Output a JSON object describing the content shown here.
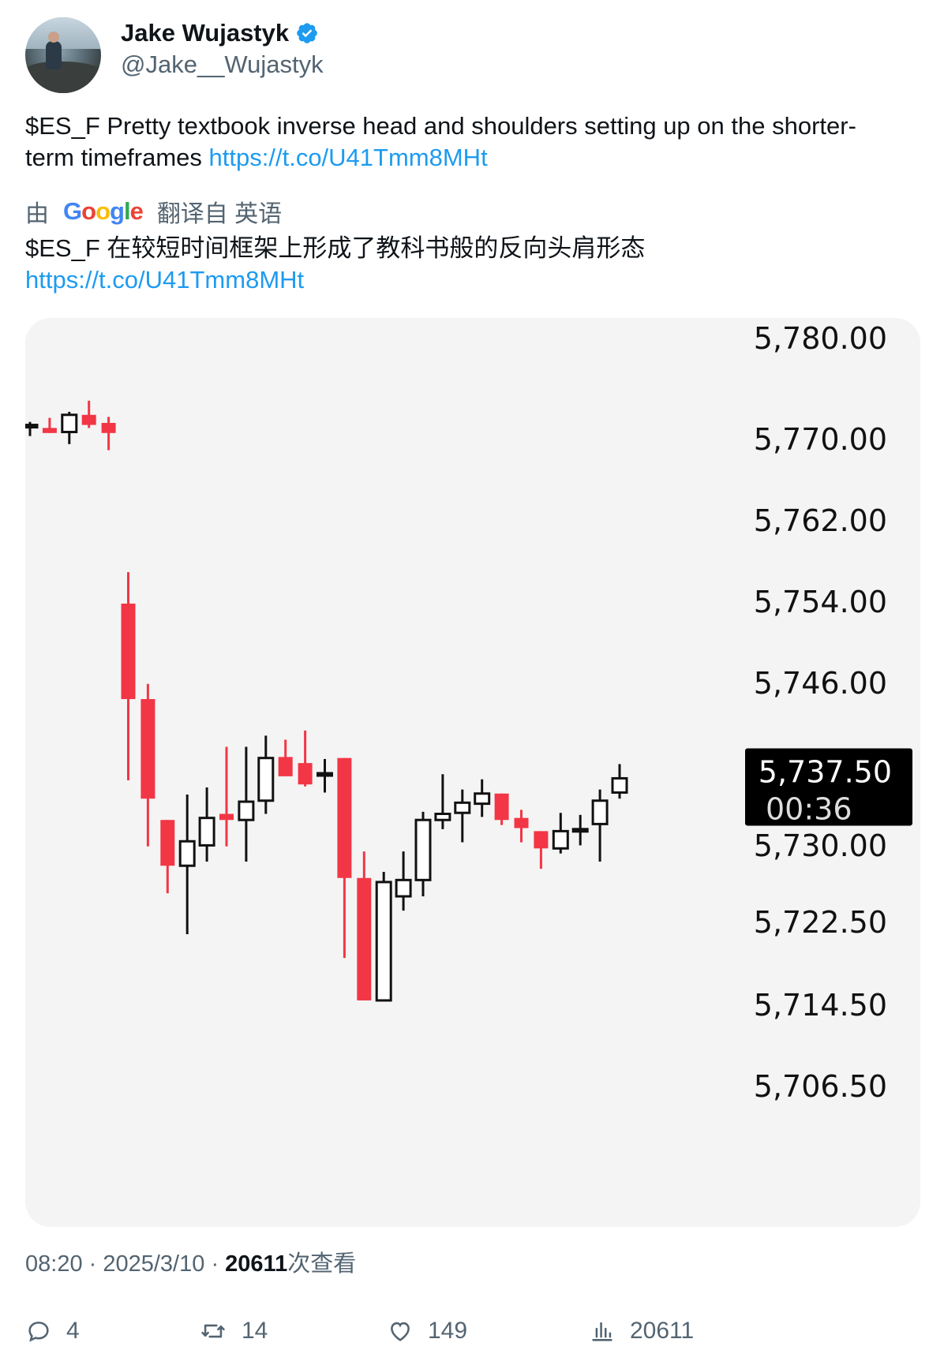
{
  "author": {
    "name": "Jake Wujastyk",
    "handle": "@Jake__Wujastyk",
    "verified": true,
    "verified_color": "#1d9bf0"
  },
  "tweet": {
    "text": "$ES_F Pretty textbook inverse head and shoulders setting up on the shorter-term timeframes",
    "link": "https://t.co/U41Tmm8MHt"
  },
  "translation": {
    "prefix": "由",
    "provider_logo": "Google",
    "suffix": "翻译自 英语",
    "text": "$ES_F 在较短时间框架上形成了教科书般的反向头肩形态",
    "link": "https://t.co/U41Tmm8MHt"
  },
  "chart_data": {
    "type": "candlestick",
    "ytick_labels": [
      "5,780.00",
      "5,770.00",
      "5,762.00",
      "5,754.00",
      "5,746.00",
      "5,730.00",
      "5,722.50",
      "5,714.50",
      "5,706.50"
    ],
    "current_price": {
      "price_label": "5,737.50",
      "timer": "00:36",
      "value": 5737.5
    },
    "up_color": "#ffffff",
    "down_color": "#f23645",
    "candles": [
      {
        "o": 5772.2,
        "h": 5772.6,
        "l": 5771.2,
        "c": 5772.3
      },
      {
        "o": 5772.0,
        "h": 5773.0,
        "l": 5771.5,
        "c": 5771.5
      },
      {
        "o": 5771.6,
        "h": 5773.6,
        "l": 5770.4,
        "c": 5773.3
      },
      {
        "o": 5773.3,
        "h": 5774.7,
        "l": 5772.0,
        "c": 5772.3
      },
      {
        "o": 5772.5,
        "h": 5773.1,
        "l": 5769.8,
        "c": 5771.5
      },
      {
        "o": 5754.7,
        "h": 5757.8,
        "l": 5737.3,
        "c": 5745.3
      },
      {
        "o": 5745.3,
        "h": 5746.8,
        "l": 5730.8,
        "c": 5735.5
      },
      {
        "o": 5733.4,
        "h": 5733.4,
        "l": 5726.2,
        "c": 5728.9
      },
      {
        "o": 5728.9,
        "h": 5735.9,
        "l": 5722.2,
        "c": 5731.3
      },
      {
        "o": 5730.9,
        "h": 5736.6,
        "l": 5729.3,
        "c": 5733.6
      },
      {
        "o": 5734.0,
        "h": 5740.6,
        "l": 5730.8,
        "c": 5733.4
      },
      {
        "o": 5733.4,
        "h": 5740.6,
        "l": 5729.3,
        "c": 5735.2
      },
      {
        "o": 5735.3,
        "h": 5741.7,
        "l": 5734.0,
        "c": 5739.5
      },
      {
        "o": 5739.6,
        "h": 5741.3,
        "l": 5737.8,
        "c": 5737.7
      },
      {
        "o": 5739.0,
        "h": 5742.2,
        "l": 5736.7,
        "c": 5736.9
      },
      {
        "o": 5738.0,
        "h": 5739.4,
        "l": 5736.1,
        "c": 5738.0
      },
      {
        "o": 5739.5,
        "h": 5739.5,
        "l": 5719.9,
        "c": 5727.7
      },
      {
        "o": 5727.7,
        "h": 5730.3,
        "l": 5715.8,
        "c": 5715.8
      },
      {
        "o": 5715.8,
        "h": 5728.3,
        "l": 5715.8,
        "c": 5727.3
      },
      {
        "o": 5725.9,
        "h": 5730.3,
        "l": 5724.5,
        "c": 5727.5
      },
      {
        "o": 5727.5,
        "h": 5734.2,
        "l": 5725.9,
        "c": 5733.4
      },
      {
        "o": 5733.4,
        "h": 5737.9,
        "l": 5732.5,
        "c": 5734.0
      },
      {
        "o": 5734.1,
        "h": 5736.4,
        "l": 5731.2,
        "c": 5735.1
      },
      {
        "o": 5735.0,
        "h": 5737.4,
        "l": 5733.7,
        "c": 5736.0
      },
      {
        "o": 5736.0,
        "h": 5736.0,
        "l": 5732.9,
        "c": 5733.4
      },
      {
        "o": 5733.6,
        "h": 5734.4,
        "l": 5731.2,
        "c": 5732.6
      },
      {
        "o": 5732.3,
        "h": 5732.3,
        "l": 5728.6,
        "c": 5730.6
      },
      {
        "o": 5730.6,
        "h": 5734.1,
        "l": 5730.1,
        "c": 5732.3
      },
      {
        "o": 5732.5,
        "h": 5733.9,
        "l": 5730.9,
        "c": 5732.5
      },
      {
        "o": 5733.0,
        "h": 5736.4,
        "l": 5729.3,
        "c": 5735.3
      },
      {
        "o": 5736.1,
        "h": 5738.9,
        "l": 5735.5,
        "c": 5737.5
      }
    ]
  },
  "meta": {
    "time": "08:20",
    "date": "2025/3/10",
    "views_count": "20611",
    "views_label": "次查看"
  },
  "actions": {
    "replies": "4",
    "reposts": "14",
    "likes": "149",
    "views": "20611"
  }
}
